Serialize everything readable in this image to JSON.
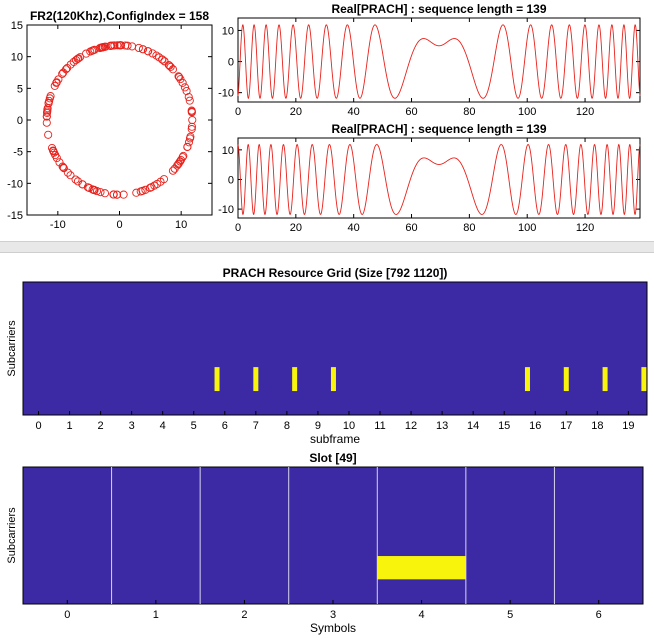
{
  "colors": {
    "trace": "#e8221c",
    "grid_bg": "#3b2aa3",
    "active": "#f9f40b",
    "axis": "#000000"
  },
  "chart_data": [
    {
      "id": "constellation",
      "type": "scatter",
      "title": "FR2(120Khz),ConfigIndex = 158",
      "marker": "circle-open",
      "xlim": [
        -15,
        15
      ],
      "ylim": [
        -15,
        15
      ],
      "x_ticks": [
        -10,
        0,
        10
      ],
      "y_ticks": [
        15,
        10,
        5,
        0,
        -5,
        -10,
        -15
      ],
      "radius": 11.8,
      "num_points": 139
    },
    {
      "id": "real-prach-1",
      "type": "line",
      "title": "Real[PRACH] : sequence length = 139",
      "xlim": [
        0,
        139
      ],
      "ylim": [
        -13,
        14
      ],
      "x_ticks": [
        0,
        20,
        40,
        60,
        80,
        100,
        120
      ],
      "y_ticks": [
        10,
        0,
        -10
      ],
      "amplitude": 11.8,
      "sequence_length": 139
    },
    {
      "id": "real-prach-2",
      "type": "line",
      "title": "Real[PRACH] : sequence length = 139",
      "xlim": [
        0,
        139
      ],
      "ylim": [
        -13,
        14
      ],
      "x_ticks": [
        0,
        20,
        40,
        60,
        80,
        100,
        120
      ],
      "y_ticks": [
        10,
        0,
        -10
      ],
      "amplitude": 11.8,
      "sequence_length": 139
    },
    {
      "id": "prach-resource-grid",
      "type": "heatmap",
      "title": "PRACH Resource Grid (Size [792 1120])",
      "xlabel": "subframe",
      "ylabel": "Subcarriers",
      "xlim": [
        -0.5,
        19.6
      ],
      "x_ticks": [
        0,
        1,
        2,
        3,
        4,
        5,
        6,
        7,
        8,
        9,
        10,
        11,
        12,
        13,
        14,
        15,
        16,
        17,
        18,
        19
      ],
      "occasions_subframe": [
        5.75,
        7.0,
        8.25,
        9.5,
        15.75,
        17.0,
        18.25,
        19.5
      ],
      "occasion_rows": [
        0.64,
        0.82
      ],
      "background": "#3b2aa3",
      "active": "#f9f40b"
    },
    {
      "id": "slot-grid",
      "type": "heatmap",
      "title": "Slot [49]",
      "xlabel": "Symbols",
      "ylabel": "Subcarriers",
      "xlim": [
        -0.5,
        6.5
      ],
      "x_ticks": [
        0,
        1,
        2,
        3,
        4,
        5,
        6
      ],
      "symbol_boundaries": [
        0.5,
        1.5,
        2.5,
        3.5,
        4.5,
        5.5
      ],
      "active_symbol": 4,
      "active_rows": [
        0.65,
        0.82
      ],
      "background": "#3b2aa3",
      "active": "#f9f40b"
    }
  ]
}
